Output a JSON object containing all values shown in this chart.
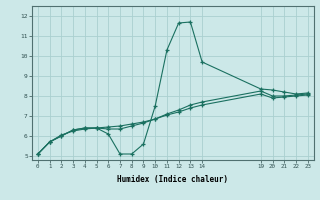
{
  "xlabel": "Humidex (Indice chaleur)",
  "ylabel": "",
  "bg_color": "#cce8e8",
  "grid_color": "#aad0d0",
  "line_color": "#1a7060",
  "xlim": [
    -0.5,
    23.5
  ],
  "ylim": [
    4.8,
    12.5
  ],
  "xticks": [
    0,
    1,
    2,
    3,
    4,
    5,
    6,
    7,
    8,
    9,
    10,
    11,
    12,
    13,
    14,
    19,
    20,
    21,
    22,
    23
  ],
  "yticks": [
    5,
    6,
    7,
    8,
    9,
    10,
    11,
    12
  ],
  "line1_x": [
    0,
    1,
    2,
    3,
    4,
    5,
    6,
    7,
    8,
    9,
    10,
    11,
    12,
    13,
    14,
    19,
    20,
    21,
    22,
    23
  ],
  "line1_y": [
    5.1,
    5.7,
    6.0,
    6.3,
    6.4,
    6.4,
    6.1,
    5.1,
    5.1,
    5.6,
    7.5,
    10.3,
    11.65,
    11.7,
    9.7,
    8.35,
    8.3,
    8.2,
    8.1,
    8.15
  ],
  "line2_x": [
    0,
    1,
    2,
    3,
    4,
    5,
    6,
    7,
    8,
    9,
    10,
    11,
    12,
    13,
    14,
    19,
    20,
    21,
    22,
    23
  ],
  "line2_y": [
    5.1,
    5.7,
    6.0,
    6.3,
    6.4,
    6.4,
    6.35,
    6.35,
    6.5,
    6.65,
    6.85,
    7.1,
    7.3,
    7.55,
    7.7,
    8.25,
    8.0,
    8.0,
    8.05,
    8.1
  ],
  "line3_x": [
    0,
    1,
    2,
    3,
    4,
    5,
    6,
    7,
    8,
    9,
    10,
    11,
    12,
    13,
    14,
    19,
    20,
    21,
    22,
    23
  ],
  "line3_y": [
    5.1,
    5.7,
    6.05,
    6.25,
    6.35,
    6.4,
    6.45,
    6.5,
    6.6,
    6.7,
    6.85,
    7.05,
    7.2,
    7.4,
    7.55,
    8.1,
    7.9,
    7.95,
    8.0,
    8.05
  ]
}
